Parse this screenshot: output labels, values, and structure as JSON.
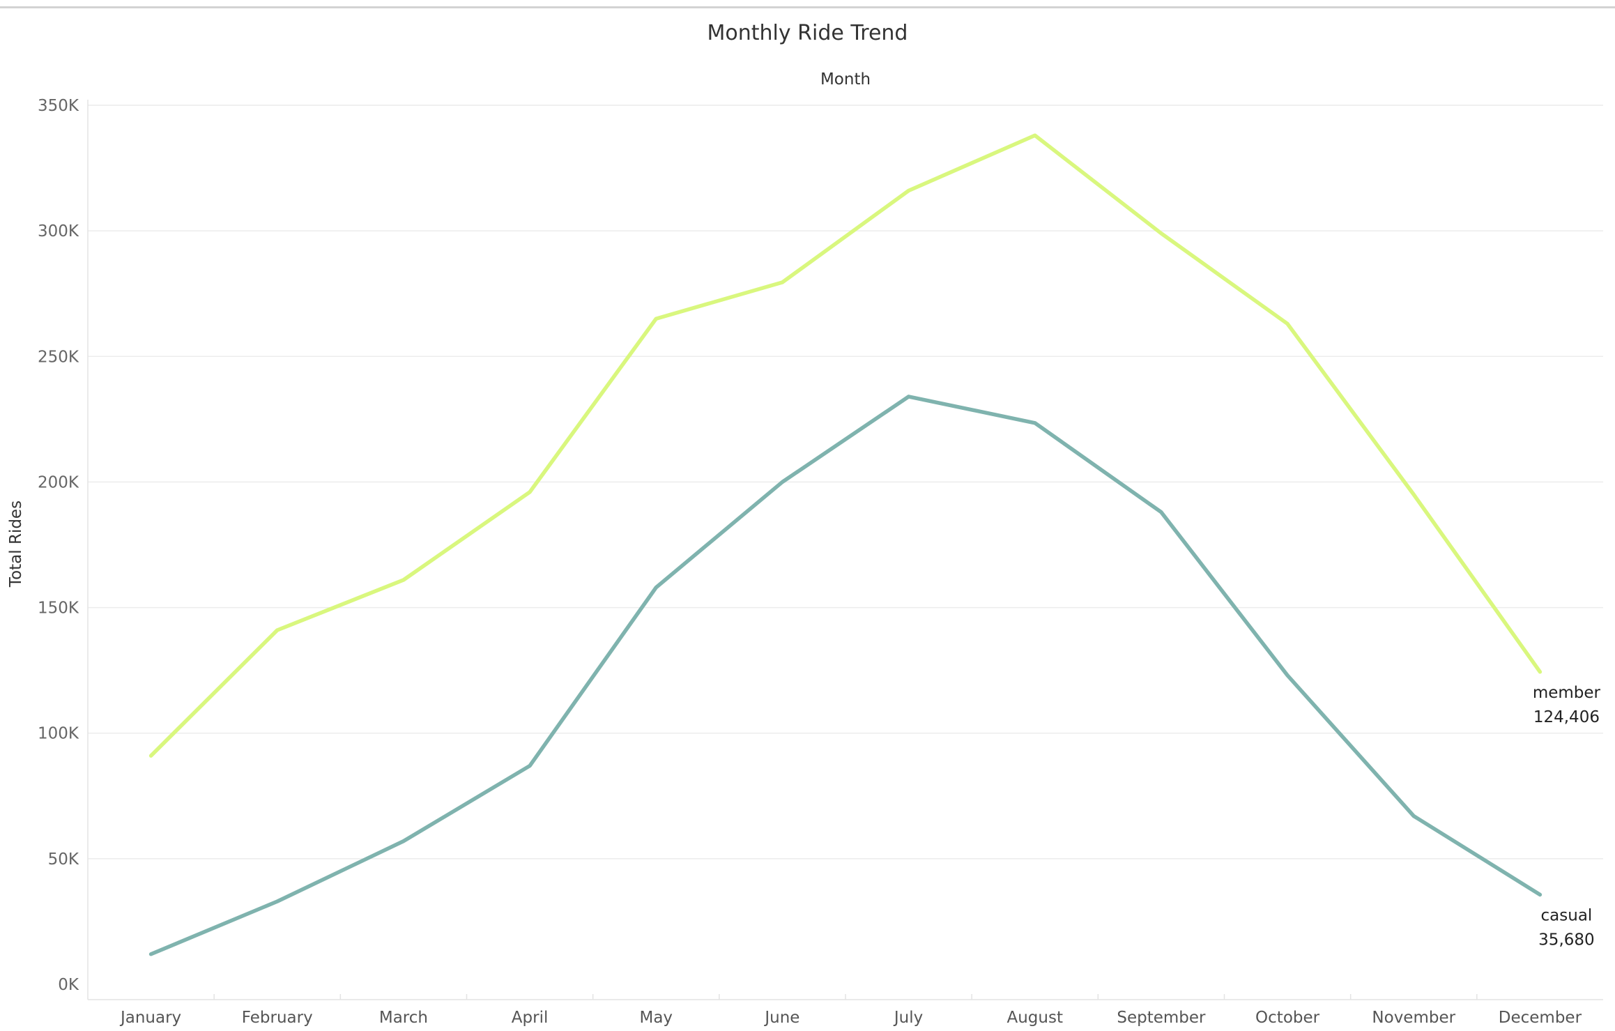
{
  "chart_data": {
    "type": "line",
    "title": "Monthly Ride Trend",
    "xlabel": "Month",
    "ylabel": "Total Rides",
    "categories": [
      "January",
      "February",
      "March",
      "April",
      "May",
      "June",
      "July",
      "August",
      "September",
      "October",
      "November",
      "December"
    ],
    "ylim": [
      0,
      350000
    ],
    "yticks": [
      0,
      50000,
      100000,
      150000,
      200000,
      250000,
      300000,
      350000
    ],
    "ytick_labels": [
      "0K",
      "50K",
      "100K",
      "150K",
      "200K",
      "250K",
      "300K",
      "350K"
    ],
    "grid": true,
    "series": [
      {
        "name": "member",
        "color": "#d9f77e",
        "values": [
          91000,
          141000,
          161000,
          196000,
          265000,
          279500,
          316000,
          338000,
          299000,
          263000,
          195000,
          124406
        ],
        "end_label": "124,406"
      },
      {
        "name": "casual",
        "color": "#7fb3ae",
        "values": [
          12000,
          33000,
          57000,
          87000,
          158000,
          200000,
          234000,
          223500,
          188000,
          123000,
          67000,
          35680
        ],
        "end_label": "35,680"
      }
    ]
  }
}
